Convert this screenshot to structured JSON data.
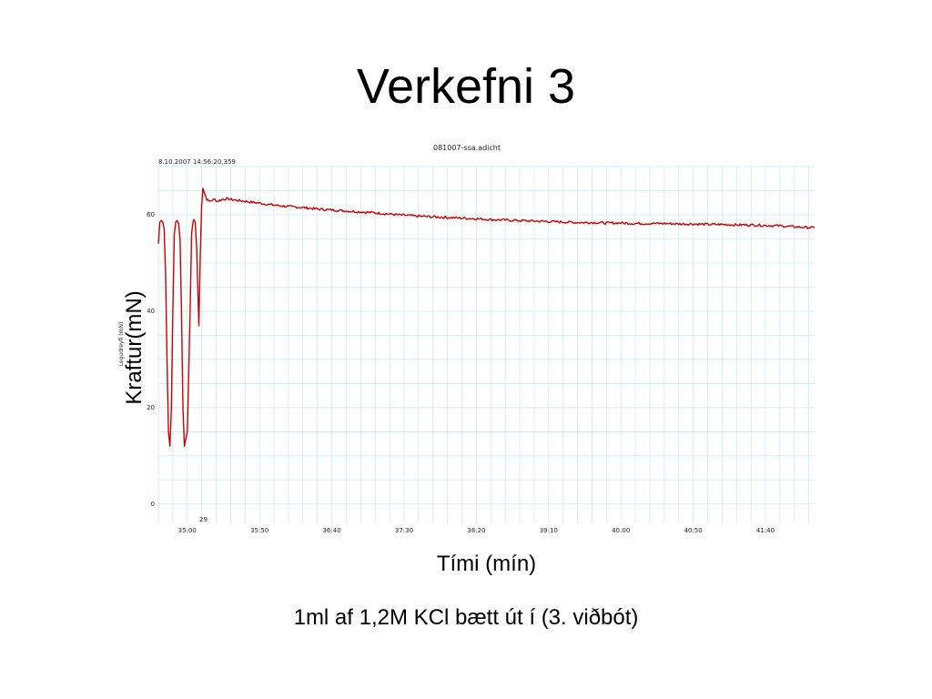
{
  "slide": {
    "title": "Verkefni 3",
    "ylabel": "Kraftur(mN)",
    "xlabel": "Tími (mín)",
    "caption": "1ml af 1,2M KCl bætt út í (3. viðbót)"
  },
  "chart_data": {
    "type": "line",
    "title": "081007-ssa.adicht",
    "timestamp": "8.10.2007 14:56:20,359",
    "inner_ylabel": "Legudreyfi (mN)",
    "block_label": "29",
    "x_ticks": [
      "35:00",
      "35:50",
      "36:40",
      "37:30",
      "38:20",
      "39:10",
      "40:00",
      "40:50",
      "41:40"
    ],
    "y_ticks": [
      "0",
      "20",
      "40",
      "60"
    ],
    "ylim": [
      -4,
      70
    ],
    "xlim_seconds": [
      2080,
      2534
    ],
    "grid": true,
    "line_color": "#cc0000",
    "grid_color": "#bfeaf5",
    "series": [
      {
        "x_seconds": [
          2080,
          2081,
          2082,
          2083,
          2084,
          2085,
          2086,
          2087,
          2088,
          2089,
          2090,
          2091,
          2092,
          2093,
          2094,
          2095,
          2096,
          2097,
          2098,
          2100,
          2102,
          2103,
          2104,
          2104.7,
          2105.5,
          2106.5,
          2108,
          2109,
          2110,
          2110.8,
          2111.5,
          2112.5,
          2113.5,
          2115,
          2117,
          2119,
          2121,
          2124,
          2128,
          2132,
          2140,
          2150,
          2160,
          2170,
          2180,
          2190,
          2200,
          2215,
          2230,
          2245,
          2260,
          2275,
          2290,
          2300,
          2310,
          2320,
          2330,
          2340,
          2350,
          2360,
          2370,
          2380,
          2390,
          2400,
          2410,
          2420,
          2430,
          2440,
          2450,
          2460,
          2470,
          2480,
          2490,
          2500,
          2510,
          2520,
          2534
        ],
        "values": [
          54,
          58.5,
          58.8,
          58.5,
          57,
          48,
          30,
          15,
          12,
          20,
          40,
          56,
          58.5,
          58.8,
          58.2,
          55,
          40,
          20,
          12,
          15,
          40,
          56,
          58.6,
          59,
          58.4,
          53,
          37,
          52,
          62,
          65.5,
          65,
          64,
          63.2,
          62.8,
          63,
          63.2,
          62.8,
          63.2,
          63.3,
          63.1,
          62.8,
          62.4,
          62,
          61.7,
          61.5,
          61.2,
          61,
          60.7,
          60.4,
          60,
          59.7,
          59.5,
          59.3,
          59.2,
          59,
          58.9,
          58.8,
          58.7,
          58.6,
          58.5,
          58.4,
          58.4,
          58.3,
          58.3,
          58.2,
          58.2,
          58.2,
          58.1,
          58.1,
          58,
          58,
          57.9,
          57.9,
          57.8,
          57.7,
          57.5,
          57.3
        ]
      }
    ]
  }
}
